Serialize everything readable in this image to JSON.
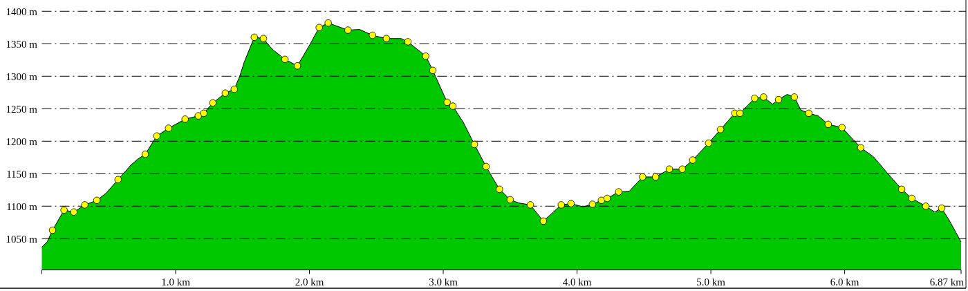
{
  "chart_data": {
    "type": "area",
    "xlim": [
      0,
      6.87
    ],
    "ylim": [
      1002,
      1417
    ],
    "xticks": [
      {
        "value": 0,
        "label": null
      },
      {
        "value": 1,
        "label": "1.0 km"
      },
      {
        "value": 2,
        "label": "2.0 km"
      },
      {
        "value": 3,
        "label": "3.0 km"
      },
      {
        "value": 4,
        "label": "4.0 km"
      },
      {
        "value": 5,
        "label": "5.0 km"
      },
      {
        "value": 6,
        "label": "6.0 km"
      },
      {
        "value": 6.87,
        "label": "6.87 km"
      }
    ],
    "yticks": [
      {
        "value": 1050,
        "label": "1050 m"
      },
      {
        "value": 1100,
        "label": "1100 m"
      },
      {
        "value": 1150,
        "label": "1150 m"
      },
      {
        "value": 1200,
        "label": "1200 m"
      },
      {
        "value": 1250,
        "label": "1250 m"
      },
      {
        "value": 1300,
        "label": "1300 m"
      },
      {
        "value": 1350,
        "label": "1350 m"
      },
      {
        "value": 1400,
        "label": "1400 m"
      }
    ],
    "grid": "y",
    "series": [
      {
        "type": "area",
        "color": "#00c800",
        "x": [
          0,
          0.04,
          0.08,
          0.166,
          0.239,
          0.321,
          0.411,
          0.48,
          0.57,
          0.669,
          0.721,
          0.773,
          0.859,
          0.947,
          1.071,
          1.169,
          1.21,
          1.278,
          1.371,
          1.438,
          1.479,
          1.513,
          1.588,
          1.656,
          1.72,
          1.817,
          1.91,
          1.996,
          2.073,
          2.14,
          2.288,
          2.375,
          2.471,
          2.575,
          2.685,
          2.736,
          2.869,
          2.922,
          3.029,
          3.072,
          3.15,
          3.233,
          3.32,
          3.42,
          3.5,
          3.563,
          3.651,
          3.748,
          3.882,
          3.955,
          4.045,
          4.115,
          4.182,
          4.225,
          4.311,
          4.39,
          4.49,
          4.587,
          4.69,
          4.786,
          4.864,
          4.983,
          5.072,
          5.179,
          5.217,
          5.327,
          5.394,
          5.461,
          5.506,
          5.57,
          5.624,
          5.673,
          5.732,
          5.803,
          5.877,
          5.98,
          6.12,
          6.216,
          6.319,
          6.426,
          6.502,
          6.606,
          6.673,
          6.725,
          6.785,
          6.87
        ],
        "values": [
          1037,
          1045,
          1063,
          1094,
          1091,
          1102,
          1109,
          1120,
          1141,
          1164,
          1173,
          1180,
          1208,
          1220,
          1234,
          1239,
          1243,
          1259,
          1274,
          1280,
          1300,
          1322,
          1360,
          1358,
          1342,
          1326,
          1316,
          1346,
          1375,
          1382,
          1371,
          1372,
          1363,
          1358,
          1358,
          1353,
          1331,
          1309,
          1260,
          1254,
          1229,
          1195,
          1161,
          1126,
          1110,
          1105,
          1102,
          1077,
          1102,
          1104,
          1099,
          1103,
          1109,
          1112,
          1122,
          1123,
          1145,
          1145,
          1157,
          1157,
          1171,
          1197,
          1218,
          1243,
          1243,
          1266,
          1268,
          1257,
          1264,
          1272,
          1268,
          1248,
          1243,
          1239,
          1226,
          1221,
          1190,
          1176,
          1151,
          1126,
          1112,
          1100,
          1091,
          1097,
          1077,
          1045
        ]
      },
      {
        "type": "scatter",
        "color": "#ffff00",
        "marker": "circle",
        "x": [
          0.08,
          0.166,
          0.239,
          0.321,
          0.411,
          0.57,
          0.773,
          0.859,
          0.947,
          1.071,
          1.169,
          1.21,
          1.278,
          1.371,
          1.438,
          1.588,
          1.656,
          1.817,
          1.91,
          2.073,
          2.14,
          2.288,
          2.471,
          2.575,
          2.736,
          2.869,
          2.922,
          3.029,
          3.072,
          3.233,
          3.32,
          3.42,
          3.5,
          3.651,
          3.748,
          3.882,
          3.955,
          4.115,
          4.182,
          4.225,
          4.311,
          4.49,
          4.587,
          4.69,
          4.786,
          4.864,
          4.983,
          5.072,
          5.179,
          5.217,
          5.327,
          5.394,
          5.506,
          5.624,
          5.732,
          5.877,
          5.98,
          6.12,
          6.426,
          6.502,
          6.606,
          6.725
        ],
        "values": [
          1063,
          1094,
          1091,
          1102,
          1109,
          1141,
          1180,
          1208,
          1220,
          1234,
          1239,
          1243,
          1259,
          1274,
          1280,
          1360,
          1358,
          1326,
          1316,
          1375,
          1382,
          1371,
          1363,
          1358,
          1353,
          1331,
          1309,
          1260,
          1254,
          1195,
          1161,
          1126,
          1110,
          1102,
          1077,
          1102,
          1104,
          1103,
          1109,
          1112,
          1122,
          1145,
          1145,
          1157,
          1157,
          1171,
          1197,
          1218,
          1243,
          1243,
          1266,
          1268,
          1264,
          1268,
          1243,
          1226,
          1221,
          1190,
          1126,
          1112,
          1100,
          1097
        ]
      }
    ]
  }
}
